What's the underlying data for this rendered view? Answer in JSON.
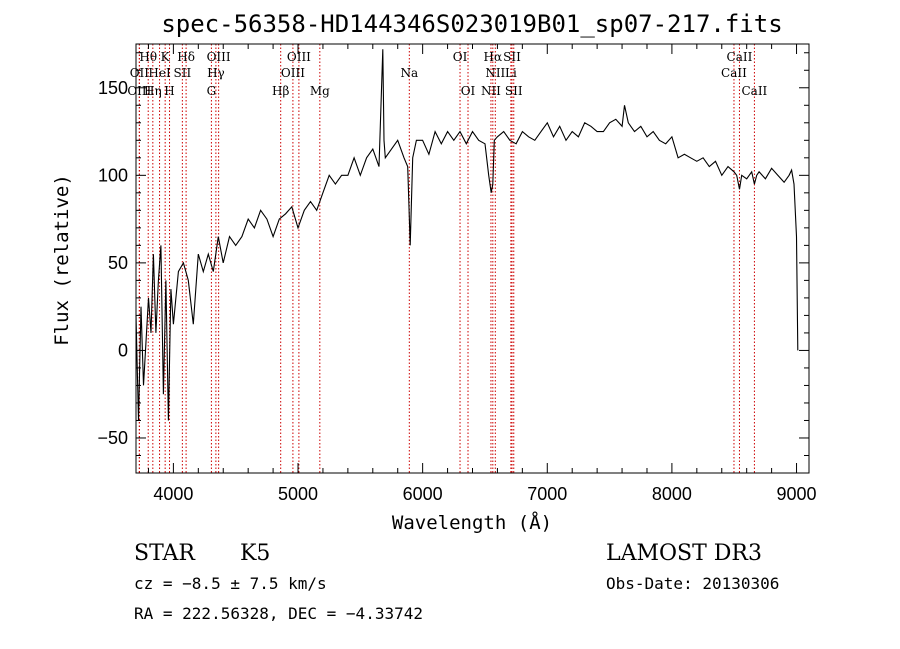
{
  "chart_data": {
    "type": "line",
    "title": "spec-56358-HD144346S023019B01_sp07-217.fits",
    "xlabel": "Wavelength (Å)",
    "ylabel": "Flux (relative)",
    "xlim": [
      3700,
      9100
    ],
    "ylim": [
      -70,
      175
    ],
    "xticks": [
      4000,
      5000,
      6000,
      7000,
      8000,
      9000
    ],
    "yticks": [
      -50,
      0,
      50,
      100,
      150
    ],
    "series": [
      {
        "name": "flux",
        "x": [
          3700,
          3720,
          3740,
          3760,
          3780,
          3800,
          3820,
          3840,
          3860,
          3880,
          3900,
          3920,
          3940,
          3960,
          3980,
          4000,
          4040,
          4080,
          4120,
          4160,
          4200,
          4240,
          4280,
          4320,
          4360,
          4400,
          4450,
          4500,
          4550,
          4600,
          4650,
          4700,
          4750,
          4800,
          4850,
          4900,
          4950,
          5000,
          5050,
          5100,
          5150,
          5200,
          5250,
          5300,
          5350,
          5400,
          5450,
          5500,
          5550,
          5600,
          5650,
          5680,
          5690,
          5700,
          5750,
          5800,
          5850,
          5880,
          5900,
          5920,
          5950,
          6000,
          6050,
          6100,
          6150,
          6200,
          6250,
          6300,
          6350,
          6400,
          6450,
          6500,
          6530,
          6550,
          6563,
          6575,
          6600,
          6650,
          6700,
          6750,
          6800,
          6850,
          6900,
          6950,
          7000,
          7050,
          7100,
          7150,
          7200,
          7250,
          7300,
          7350,
          7400,
          7450,
          7500,
          7550,
          7600,
          7620,
          7650,
          7700,
          7750,
          7800,
          7850,
          7900,
          7950,
          8000,
          8050,
          8100,
          8150,
          8200,
          8250,
          8300,
          8350,
          8400,
          8450,
          8498,
          8520,
          8542,
          8560,
          8600,
          8640,
          8662,
          8680,
          8700,
          8750,
          8800,
          8850,
          8900,
          8940,
          8960,
          8980,
          9000,
          9010
        ],
        "y": [
          20,
          -40,
          25,
          -20,
          5,
          30,
          10,
          55,
          10,
          40,
          60,
          -25,
          40,
          -40,
          35,
          15,
          45,
          50,
          40,
          15,
          55,
          45,
          55,
          45,
          65,
          50,
          65,
          60,
          65,
          75,
          70,
          80,
          75,
          65,
          75,
          78,
          82,
          70,
          80,
          85,
          80,
          90,
          100,
          95,
          100,
          100,
          110,
          100,
          110,
          115,
          105,
          172,
          120,
          110,
          115,
          120,
          110,
          105,
          60,
          110,
          120,
          120,
          112,
          125,
          118,
          125,
          120,
          125,
          118,
          125,
          120,
          118,
          100,
          90,
          95,
          120,
          122,
          125,
          120,
          118,
          125,
          122,
          120,
          125,
          130,
          122,
          128,
          120,
          125,
          122,
          130,
          128,
          125,
          125,
          130,
          132,
          128,
          140,
          130,
          125,
          128,
          122,
          125,
          120,
          118,
          122,
          110,
          112,
          110,
          108,
          110,
          105,
          108,
          100,
          105,
          102,
          100,
          92,
          100,
          98,
          102,
          95,
          100,
          102,
          98,
          104,
          100,
          96,
          100,
          103,
          95,
          65,
          0
        ]
      }
    ],
    "spectral_lines": [
      {
        "label": "Hθ",
        "wl": 3798,
        "row": 1
      },
      {
        "label": "OII",
        "wl": 3727,
        "row": 2
      },
      {
        "label": "OIII",
        "wl": 3727,
        "row": 3
      },
      {
        "label": "K",
        "wl": 3934,
        "row": 1
      },
      {
        "label": "HeI",
        "wl": 3889,
        "row": 2
      },
      {
        "label": "Hη",
        "wl": 3835,
        "row": 3
      },
      {
        "label": "Hδ",
        "wl": 4102,
        "row": 1
      },
      {
        "label": "SII",
        "wl": 4072,
        "row": 2
      },
      {
        "label": "H",
        "wl": 3969,
        "row": 3
      },
      {
        "label": "OIII",
        "wl": 4363,
        "row": 1
      },
      {
        "label": "Hγ",
        "wl": 4341,
        "row": 2
      },
      {
        "label": "G",
        "wl": 4305,
        "row": 3
      },
      {
        "label": "OIII",
        "wl": 5007,
        "row": 1
      },
      {
        "label": "OIII",
        "wl": 4959,
        "row": 2
      },
      {
        "label": "Hβ",
        "wl": 4861,
        "row": 3
      },
      {
        "label": "Mg",
        "wl": 5175,
        "row": 3
      },
      {
        "label": "Na",
        "wl": 5893,
        "row": 2
      },
      {
        "label": "OI",
        "wl": 6300,
        "row": 1
      },
      {
        "label": "OI",
        "wl": 6364,
        "row": 3
      },
      {
        "label": "Hα",
        "wl": 6563,
        "row": 1
      },
      {
        "label": "SII",
        "wl": 6717,
        "row": 1
      },
      {
        "label": "NII",
        "wl": 6583,
        "row": 2
      },
      {
        "label": "Li",
        "wl": 6708,
        "row": 2
      },
      {
        "label": "NII",
        "wl": 6548,
        "row": 3
      },
      {
        "label": "SII",
        "wl": 6731,
        "row": 3
      },
      {
        "label": "CaII",
        "wl": 8542,
        "row": 1
      },
      {
        "label": "CaII",
        "wl": 8498,
        "row": 2
      },
      {
        "label": "CaII",
        "wl": 8662,
        "row": 3
      }
    ],
    "line_color": "#cc0000",
    "trace_color": "#000000"
  },
  "info": {
    "object_class": "STAR",
    "subclass": "K5",
    "survey": "LAMOST DR3",
    "velocity": "cz = −8.5 ± 7.5 km/s",
    "obs_date": "Obs-Date: 20130306",
    "coords": "RA = 222.56328, DEC =  −4.33742"
  }
}
